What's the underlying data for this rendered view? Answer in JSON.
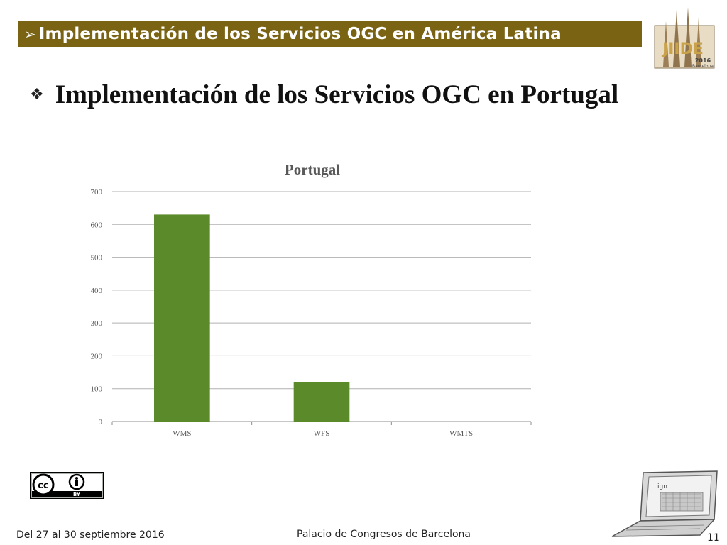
{
  "header": {
    "arrow": "➢",
    "title": "Implementación de los Servicios OGC en América Latina"
  },
  "logo": {
    "text": "JIIDE",
    "year": "2016",
    "city": "Barcelona",
    "icon": "sagrada-familia-icon"
  },
  "subtitle": {
    "bullet": "❖",
    "text": "Implementación de los Servicios OGC en Portugal"
  },
  "chart_data": {
    "type": "bar",
    "title": "Portugal",
    "categories": [
      "WMS",
      "WFS",
      "WMTS"
    ],
    "values": [
      630,
      120,
      0
    ],
    "yticks": [
      "0",
      "100",
      "200",
      "300",
      "400",
      "500",
      "600",
      "700"
    ],
    "ylim": [
      0,
      700
    ],
    "grid": true,
    "bar_color": "#5a8a2a",
    "xlabel": "",
    "ylabel": ""
  },
  "cc_badge": {
    "label": "BY",
    "icon": "creative-commons-by-icon"
  },
  "laptop": {
    "label": "ign",
    "icon": "laptop-icon"
  },
  "footer": {
    "dates": "Del 27 al 30 septiembre 2016",
    "venue": "Palacio de Congresos de Barcelona",
    "page": "11"
  },
  "colors": {
    "header_bg": "#7a6414",
    "bar": "#5a8a2a",
    "grid": "#b0b0b0"
  }
}
